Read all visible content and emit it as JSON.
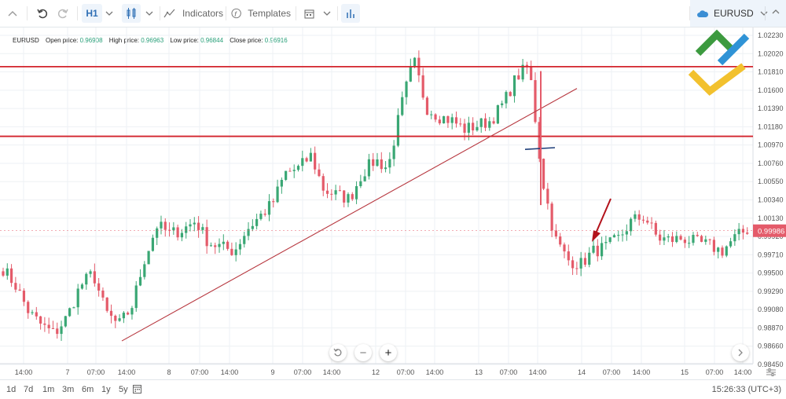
{
  "toolbar": {
    "interval": "H1",
    "indicators_label": "Indicators",
    "templates_label": "Templates",
    "symbol": "EURUSD"
  },
  "legend": {
    "symbol": "EURUSD",
    "open_label": "Open price:",
    "open_value": "0.96908",
    "high_label": "High price:",
    "high_value": "0.96963",
    "low_label": "Low price:",
    "low_value": "0.96844",
    "close_label": "Close price:",
    "close_value": "0.96916"
  },
  "bottom": {
    "ranges": [
      "1d",
      "7d",
      "1m",
      "3m",
      "6m",
      "1y",
      "5y"
    ],
    "clock": "15:26:33 (UTC+3)"
  },
  "colors": {
    "up": "#3aa774",
    "down": "#e45b6a",
    "level": "#d3242c",
    "trend": "#b7373f",
    "marker": "#1e3f7a",
    "arrow": "#b3121b",
    "price_tag": "#e45b6a"
  },
  "chart_data": {
    "type": "candlestick",
    "symbol": "EURUSD",
    "timeframe": "H1",
    "current_price": "0.99986",
    "y_ticks": [
      "1.02230",
      "1.02020",
      "1.01810",
      "1.01600",
      "1.01390",
      "1.01180",
      "1.00970",
      "1.00760",
      "1.00550",
      "1.00340",
      "1.00130",
      "0.99920",
      "0.99710",
      "0.99500",
      "0.99290",
      "0.99080",
      "0.98870",
      "0.98660",
      "0.98450"
    ],
    "ylim": [
      0.9845,
      1.0223
    ],
    "x_ticks": [
      "14:00",
      "7",
      "07:00",
      "14:00",
      "8",
      "07:00",
      "14:00",
      "9",
      "07:00",
      "14:00",
      "12",
      "07:00",
      "14:00",
      "13",
      "07:00",
      "14:00",
      "14",
      "07:00",
      "14:00",
      "15",
      "07:00",
      "14:00"
    ],
    "resistance_levels": [
      1.0187,
      1.0107
    ],
    "trendline": {
      "from": [
        0.9872
      ],
      "to": [
        1.0162
      ]
    },
    "anchors": [
      0.9955,
      0.9935,
      0.9905,
      0.989,
      0.988,
      0.99,
      0.9935,
      0.995,
      0.9905,
      0.989,
      0.991,
      0.9965,
      1.0005,
      0.9995,
      1.0,
      1.001,
      0.9985,
      0.998,
      0.9975,
      1.0,
      1.0015,
      1.003,
      1.0065,
      1.007,
      1.0085,
      1.0045,
      1.004,
      1.0035,
      1.0065,
      1.008,
      1.007,
      1.014,
      1.0195,
      1.014,
      1.013,
      1.0125,
      1.0115,
      1.012,
      1.0125,
      1.0145,
      1.0175,
      1.0188,
      1.006,
      0.999,
      0.9965,
      0.996,
      0.9975,
      0.998,
      0.999,
      1.001,
      1.0015,
      0.999,
      0.9988,
      0.999,
      0.9985,
      0.9982,
      0.9975,
      0.999,
      1.0
    ]
  }
}
